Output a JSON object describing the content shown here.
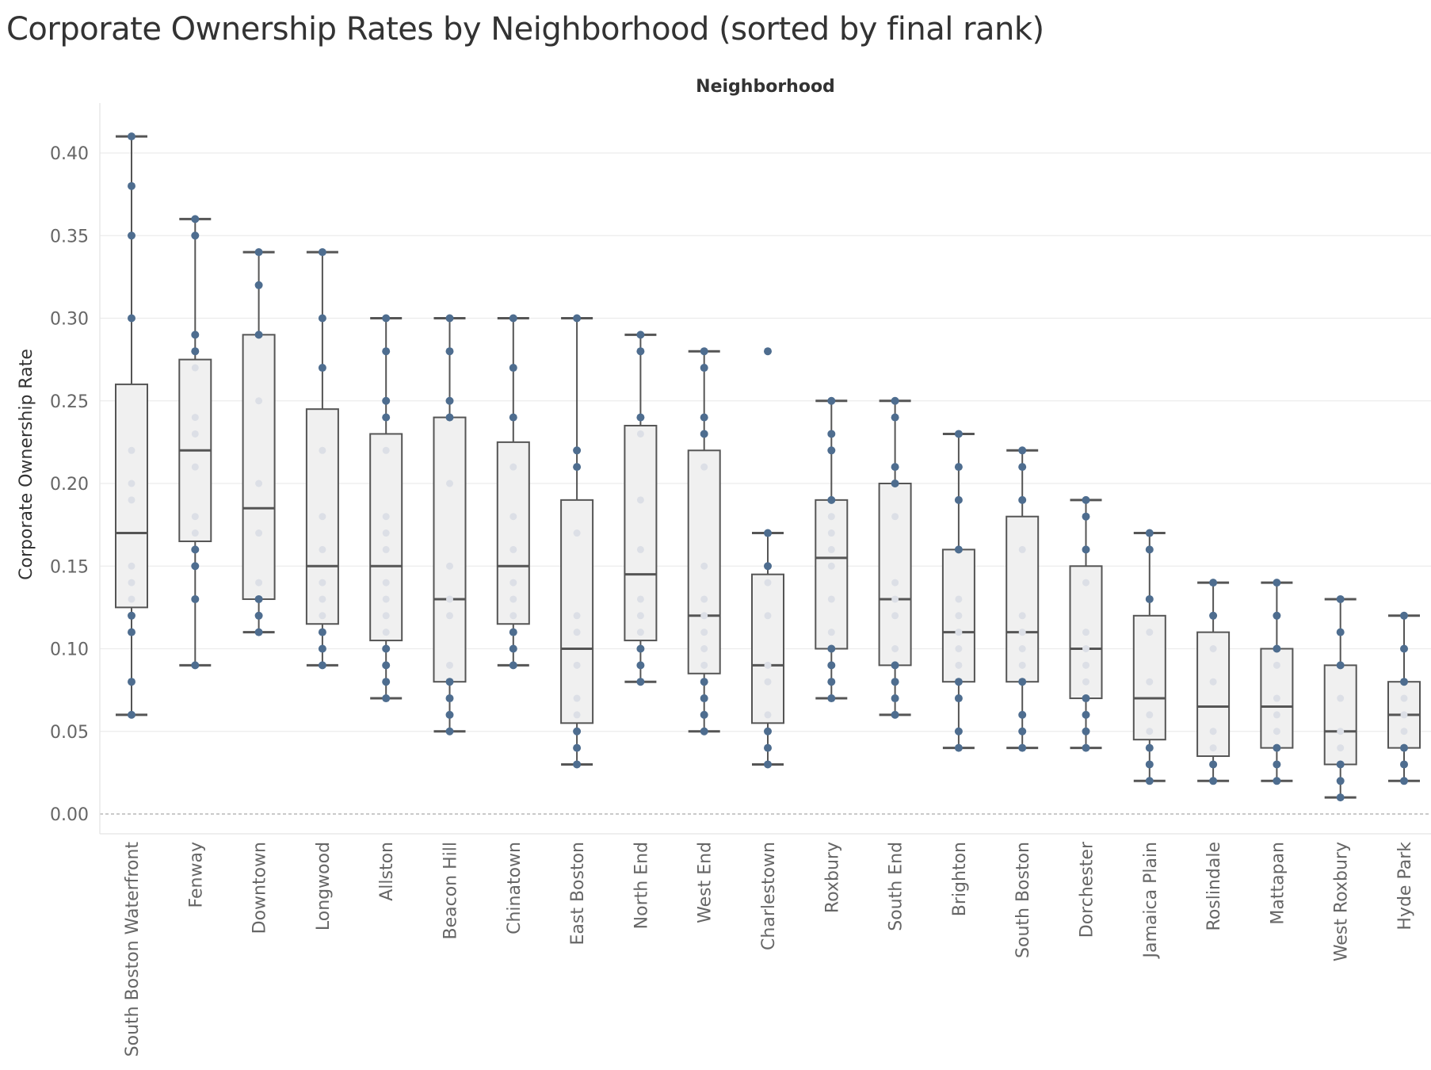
{
  "title": "Corporate Ownership Rates by Neighborhood (sorted by final rank)",
  "chart_data": {
    "type": "boxplot",
    "title": "Corporate Ownership Rates by Neighborhood (sorted by final rank)",
    "column_header": "Neighborhood",
    "ylabel": "Corporate Ownership Rate",
    "ylim": [
      0,
      0.42
    ],
    "yticks": [
      "0.00",
      "0.05",
      "0.10",
      "0.15",
      "0.20",
      "0.25",
      "0.30",
      "0.35",
      "0.40"
    ],
    "ytick_values": [
      0,
      0.05,
      0.1,
      0.15,
      0.2,
      0.25,
      0.3,
      0.35,
      0.4
    ],
    "grid": true,
    "zero_reference_line": true,
    "colors": {
      "point": "#4e6d8f",
      "inner_point": "#dcdfe6",
      "box_fill": "#f0f0f0",
      "box_stroke": "#555555"
    },
    "categories": [
      "South Boston Waterfront",
      "Fenway",
      "Downtown",
      "Longwood",
      "Allston",
      "Beacon Hill",
      "Chinatown",
      "East Boston",
      "North End",
      "West End",
      "Charlestown",
      "Roxbury",
      "South End",
      "Brighton",
      "South Boston",
      "Dorchester",
      "Jamaica Plain",
      "Roslindale",
      "Mattapan",
      "West Roxbury",
      "Hyde Park"
    ],
    "boxes": [
      {
        "min": 0.06,
        "q1": 0.125,
        "median": 0.17,
        "q3": 0.26,
        "max": 0.41,
        "outliers": []
      },
      {
        "min": 0.09,
        "q1": 0.165,
        "median": 0.22,
        "q3": 0.275,
        "max": 0.36,
        "outliers": []
      },
      {
        "min": 0.11,
        "q1": 0.13,
        "median": 0.185,
        "q3": 0.29,
        "max": 0.34,
        "outliers": []
      },
      {
        "min": 0.09,
        "q1": 0.115,
        "median": 0.15,
        "q3": 0.245,
        "max": 0.34,
        "outliers": []
      },
      {
        "min": 0.07,
        "q1": 0.105,
        "median": 0.15,
        "q3": 0.23,
        "max": 0.3,
        "outliers": []
      },
      {
        "min": 0.05,
        "q1": 0.08,
        "median": 0.13,
        "q3": 0.24,
        "max": 0.3,
        "outliers": []
      },
      {
        "min": 0.09,
        "q1": 0.115,
        "median": 0.15,
        "q3": 0.225,
        "max": 0.3,
        "outliers": []
      },
      {
        "min": 0.03,
        "q1": 0.055,
        "median": 0.1,
        "q3": 0.19,
        "max": 0.3,
        "outliers": []
      },
      {
        "min": 0.08,
        "q1": 0.105,
        "median": 0.145,
        "q3": 0.235,
        "max": 0.29,
        "outliers": []
      },
      {
        "min": 0.05,
        "q1": 0.085,
        "median": 0.12,
        "q3": 0.22,
        "max": 0.28,
        "outliers": []
      },
      {
        "min": 0.03,
        "q1": 0.055,
        "median": 0.09,
        "q3": 0.145,
        "max": 0.17,
        "outliers": [
          0.28
        ]
      },
      {
        "min": 0.07,
        "q1": 0.1,
        "median": 0.155,
        "q3": 0.19,
        "max": 0.25,
        "outliers": []
      },
      {
        "min": 0.06,
        "q1": 0.09,
        "median": 0.13,
        "q3": 0.2,
        "max": 0.25,
        "outliers": []
      },
      {
        "min": 0.04,
        "q1": 0.08,
        "median": 0.11,
        "q3": 0.16,
        "max": 0.23,
        "outliers": []
      },
      {
        "min": 0.04,
        "q1": 0.08,
        "median": 0.11,
        "q3": 0.18,
        "max": 0.22,
        "outliers": []
      },
      {
        "min": 0.04,
        "q1": 0.07,
        "median": 0.1,
        "q3": 0.15,
        "max": 0.19,
        "outliers": []
      },
      {
        "min": 0.02,
        "q1": 0.045,
        "median": 0.07,
        "q3": 0.12,
        "max": 0.17,
        "outliers": []
      },
      {
        "min": 0.02,
        "q1": 0.035,
        "median": 0.065,
        "q3": 0.11,
        "max": 0.14,
        "outliers": []
      },
      {
        "min": 0.02,
        "q1": 0.04,
        "median": 0.065,
        "q3": 0.1,
        "max": 0.14,
        "outliers": []
      },
      {
        "min": 0.01,
        "q1": 0.03,
        "median": 0.05,
        "q3": 0.09,
        "max": 0.13,
        "outliers": []
      },
      {
        "min": 0.02,
        "q1": 0.04,
        "median": 0.06,
        "q3": 0.08,
        "max": 0.12,
        "outliers": []
      }
    ],
    "points": [
      [
        0.41,
        0.38,
        0.35,
        0.3,
        0.22,
        0.2,
        0.19,
        0.15,
        0.14,
        0.13,
        0.12,
        0.11,
        0.08,
        0.06
      ],
      [
        0.36,
        0.35,
        0.29,
        0.28,
        0.27,
        0.24,
        0.23,
        0.21,
        0.18,
        0.17,
        0.16,
        0.15,
        0.13,
        0.09
      ],
      [
        0.34,
        0.32,
        0.29,
        0.25,
        0.2,
        0.17,
        0.14,
        0.13,
        0.12,
        0.11
      ],
      [
        0.34,
        0.3,
        0.27,
        0.22,
        0.18,
        0.16,
        0.14,
        0.13,
        0.12,
        0.11,
        0.1,
        0.09
      ],
      [
        0.3,
        0.28,
        0.25,
        0.24,
        0.22,
        0.18,
        0.17,
        0.16,
        0.14,
        0.13,
        0.12,
        0.11,
        0.1,
        0.09,
        0.08,
        0.07
      ],
      [
        0.3,
        0.28,
        0.25,
        0.24,
        0.2,
        0.15,
        0.13,
        0.12,
        0.09,
        0.08,
        0.07,
        0.06,
        0.05
      ],
      [
        0.3,
        0.27,
        0.24,
        0.21,
        0.18,
        0.16,
        0.14,
        0.13,
        0.12,
        0.11,
        0.1,
        0.09
      ],
      [
        0.3,
        0.22,
        0.21,
        0.17,
        0.12,
        0.11,
        0.09,
        0.07,
        0.06,
        0.05,
        0.04,
        0.03
      ],
      [
        0.29,
        0.28,
        0.24,
        0.23,
        0.19,
        0.16,
        0.13,
        0.12,
        0.11,
        0.1,
        0.09,
        0.08
      ],
      [
        0.28,
        0.27,
        0.24,
        0.23,
        0.21,
        0.15,
        0.13,
        0.12,
        0.11,
        0.1,
        0.09,
        0.08,
        0.07,
        0.06,
        0.05
      ],
      [
        0.17,
        0.15,
        0.14,
        0.12,
        0.09,
        0.08,
        0.06,
        0.05,
        0.04,
        0.03
      ],
      [
        0.25,
        0.23,
        0.22,
        0.19,
        0.18,
        0.17,
        0.16,
        0.15,
        0.13,
        0.11,
        0.1,
        0.09,
        0.08,
        0.07
      ],
      [
        0.25,
        0.24,
        0.21,
        0.2,
        0.18,
        0.14,
        0.13,
        0.12,
        0.1,
        0.09,
        0.08,
        0.07,
        0.06
      ],
      [
        0.23,
        0.21,
        0.19,
        0.16,
        0.13,
        0.12,
        0.11,
        0.1,
        0.09,
        0.08,
        0.07,
        0.05,
        0.04
      ],
      [
        0.22,
        0.21,
        0.19,
        0.16,
        0.12,
        0.11,
        0.1,
        0.09,
        0.08,
        0.06,
        0.05,
        0.04
      ],
      [
        0.19,
        0.18,
        0.16,
        0.14,
        0.11,
        0.1,
        0.09,
        0.08,
        0.07,
        0.06,
        0.05,
        0.04
      ],
      [
        0.17,
        0.16,
        0.13,
        0.11,
        0.08,
        0.06,
        0.05,
        0.04,
        0.03,
        0.02
      ],
      [
        0.14,
        0.12,
        0.1,
        0.08,
        0.05,
        0.04,
        0.03,
        0.02
      ],
      [
        0.14,
        0.12,
        0.1,
        0.09,
        0.07,
        0.06,
        0.05,
        0.04,
        0.03,
        0.02
      ],
      [
        0.13,
        0.11,
        0.09,
        0.07,
        0.05,
        0.04,
        0.03,
        0.02,
        0.01
      ],
      [
        0.12,
        0.1,
        0.08,
        0.07,
        0.06,
        0.05,
        0.04,
        0.03,
        0.02
      ]
    ]
  }
}
